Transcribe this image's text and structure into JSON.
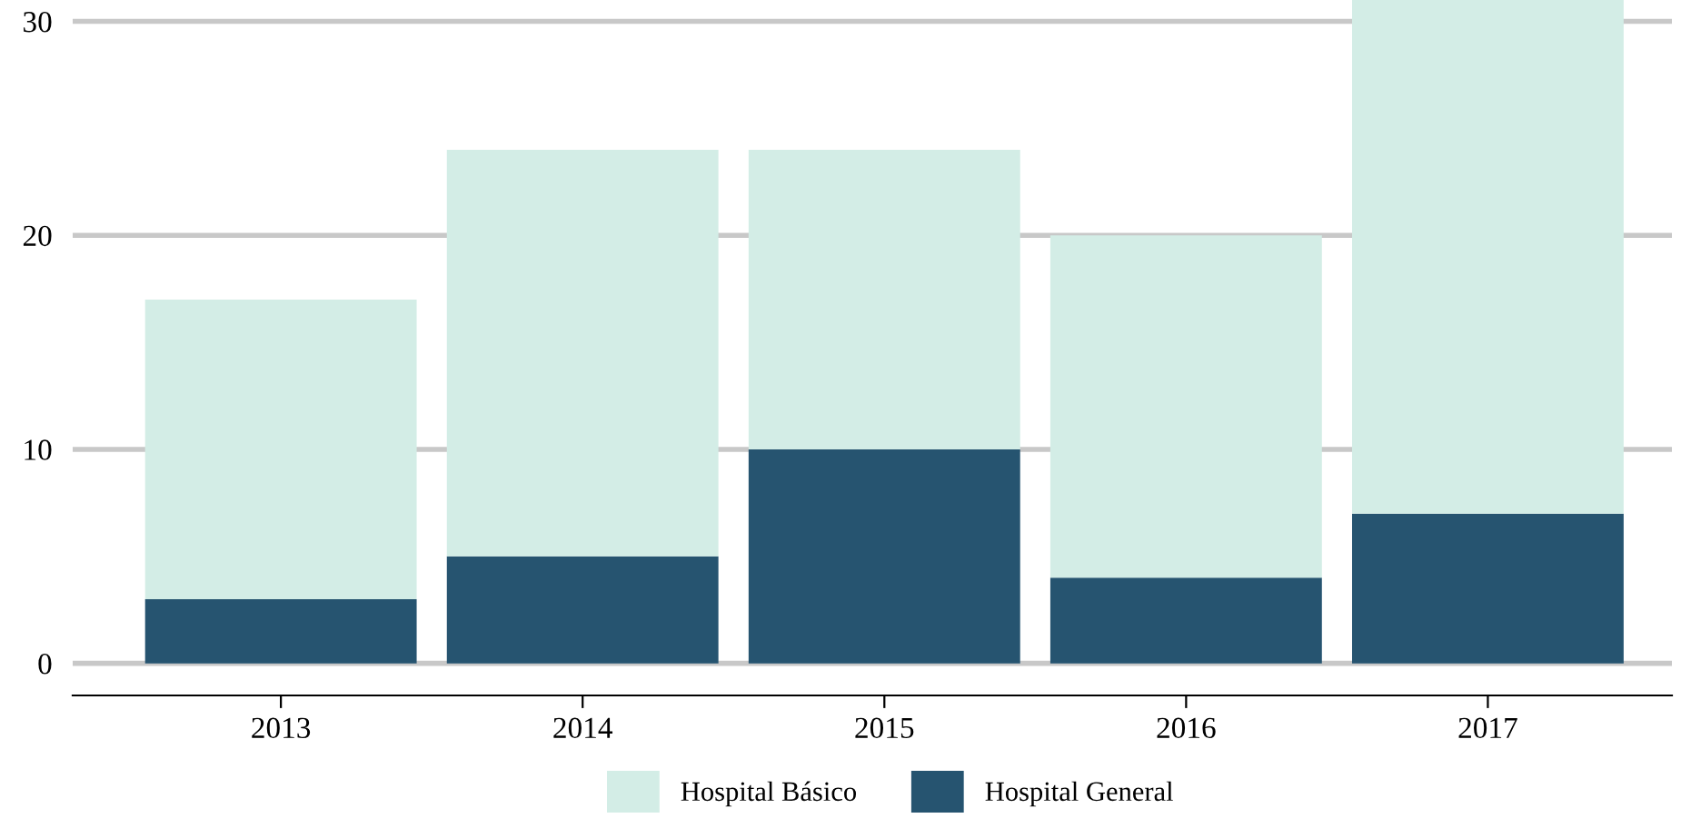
{
  "chart_data": {
    "type": "bar",
    "stacked": true,
    "categories": [
      "2013",
      "2014",
      "2015",
      "2016",
      "2017"
    ],
    "series": [
      {
        "name": "Hospital General",
        "color": "#265470",
        "values": [
          3,
          5,
          10,
          4,
          7
        ]
      },
      {
        "name": "Hospital Básico",
        "color": "#d3ede6",
        "values": [
          14,
          19,
          14,
          16,
          24
        ]
      }
    ],
    "ylim": [
      -1.5,
      31
    ],
    "yticks": [
      0,
      10,
      20,
      30
    ],
    "grid": "y",
    "legend": "bottom"
  }
}
